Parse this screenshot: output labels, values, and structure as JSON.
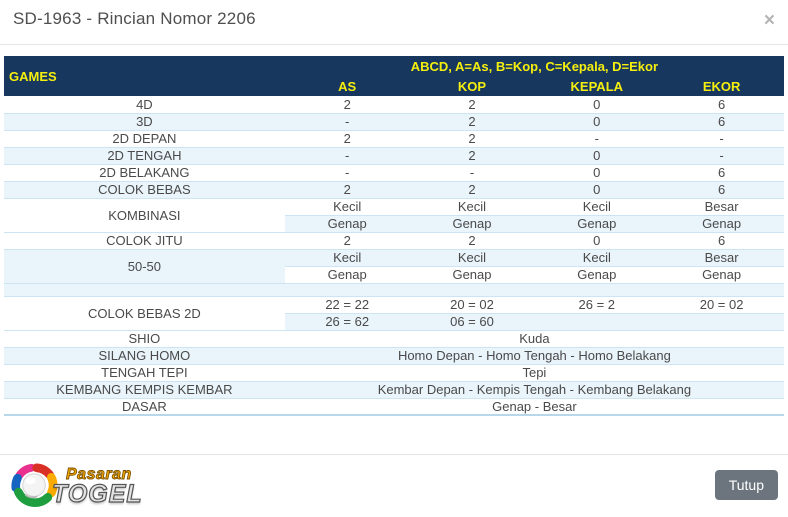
{
  "modal": {
    "title": "SD-1963 - Rincian Nomor 2206",
    "close_glyph": "×"
  },
  "colors": {
    "header_bg": "#17375e",
    "header_text": "#f5ef0e",
    "stripe_blue": "#eaf4fb",
    "row_border": "#cde5f3",
    "button_bg": "#6c757d"
  },
  "table": {
    "games_header": "GAMES",
    "abcd_header": "ABCD, A=As, B=Kop, C=Kepala, D=Ekor",
    "columns": [
      "AS",
      "KOP",
      "KEPALA",
      "EKOR"
    ],
    "rows": [
      {
        "type": "values",
        "label": "4D",
        "shade": "w",
        "values": [
          "2",
          "2",
          "0",
          "6"
        ]
      },
      {
        "type": "values",
        "label": "3D",
        "shade": "b",
        "values": [
          "-",
          "2",
          "0",
          "6"
        ]
      },
      {
        "type": "values",
        "label": "2D DEPAN",
        "shade": "w",
        "values": [
          "2",
          "2",
          "-",
          "-"
        ]
      },
      {
        "type": "values",
        "label": "2D TENGAH",
        "shade": "b",
        "values": [
          "-",
          "2",
          "0",
          "-"
        ]
      },
      {
        "type": "values",
        "label": "2D BELAKANG",
        "shade": "w",
        "values": [
          "-",
          "-",
          "0",
          "6"
        ]
      },
      {
        "type": "values",
        "label": "COLOK BEBAS",
        "shade": "b",
        "values": [
          "2",
          "2",
          "0",
          "6"
        ]
      },
      {
        "type": "double",
        "label": "KOMBINASI",
        "label_shade": "w",
        "rows": [
          {
            "shade": "w",
            "values": [
              "Kecil",
              "Kecil",
              "Kecil",
              "Besar"
            ]
          },
          {
            "shade": "b",
            "values": [
              "Genap",
              "Genap",
              "Genap",
              "Genap"
            ]
          }
        ]
      },
      {
        "type": "values",
        "label": "COLOK JITU",
        "shade": "w",
        "values": [
          "2",
          "2",
          "0",
          "6"
        ]
      },
      {
        "type": "double",
        "label": "50-50",
        "label_shade": "b",
        "rows": [
          {
            "shade": "b",
            "values": [
              "Kecil",
              "Kecil",
              "Kecil",
              "Besar"
            ]
          },
          {
            "shade": "w",
            "values": [
              "Genap",
              "Genap",
              "Genap",
              "Genap"
            ]
          }
        ]
      },
      {
        "type": "spacer",
        "shade": "b"
      },
      {
        "type": "double",
        "label": "COLOK BEBAS 2D",
        "label_shade": "w",
        "rows": [
          {
            "shade": "w",
            "values": [
              "22 = 22",
              "20 = 02",
              "26 = 2",
              "20 = 02"
            ]
          },
          {
            "shade": "b",
            "values": [
              "26 = 62",
              "06 = 60",
              "",
              ""
            ]
          }
        ]
      },
      {
        "type": "span",
        "label": "SHIO",
        "shade": "w",
        "value": "Kuda"
      },
      {
        "type": "span",
        "label": "SILANG HOMO",
        "shade": "b",
        "value": "Homo Depan - Homo Tengah - Homo Belakang"
      },
      {
        "type": "span",
        "label": "TENGAH TEPI",
        "shade": "w",
        "value": "Tepi"
      },
      {
        "type": "span",
        "label": "KEMBANG KEMPIS KEMBAR",
        "shade": "b",
        "value": "Kembar Depan - Kempis Tengah - Kembang Belakang"
      },
      {
        "type": "span",
        "label": "DASAR",
        "shade": "w",
        "value": "Genap - Besar"
      }
    ]
  },
  "footer": {
    "logo_line1": "Pasaran",
    "logo_line2": "TOGEL",
    "close_button": "Tutup"
  }
}
